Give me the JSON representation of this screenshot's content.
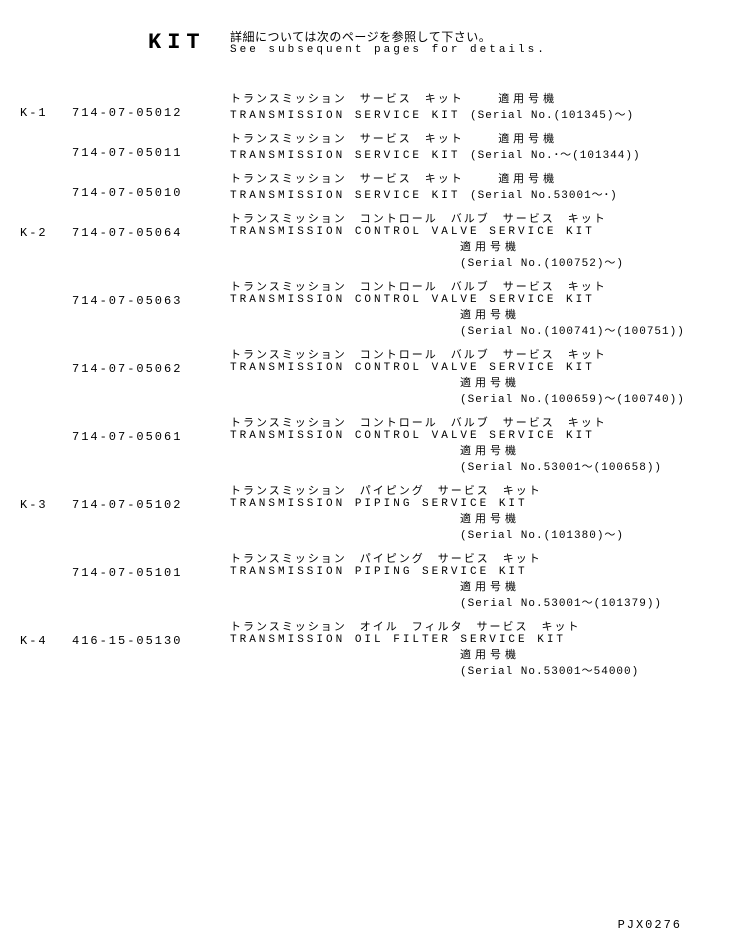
{
  "header": {
    "title": "KIT",
    "jp": "詳細については次のページを参照して下さい。",
    "en": "See subsequent pages for details."
  },
  "rows": [
    {
      "k": "K-1",
      "part": "714-07-05012",
      "jp": "トランスミッション　サービス　キット",
      "en": "TRANSMISSION SERVICE KIT",
      "inline_serial_jp": "適用号機",
      "inline_serial_en": "(Serial No.(101345)～)",
      "serial_jp": null,
      "serial_en": null
    },
    {
      "k": "",
      "part": "714-07-05011",
      "jp": "トランスミッション　サービス　キット",
      "en": "TRANSMISSION SERVICE KIT",
      "inline_serial_jp": "適用号機",
      "inline_serial_en": "(Serial No.･～(101344))",
      "serial_jp": null,
      "serial_en": null
    },
    {
      "k": "",
      "part": "714-07-05010",
      "jp": "トランスミッション　サービス　キット",
      "en": "TRANSMISSION SERVICE KIT",
      "inline_serial_jp": "適用号機",
      "inline_serial_en": "(Serial No.53001～･)",
      "serial_jp": null,
      "serial_en": null
    },
    {
      "k": "K-2",
      "part": "714-07-05064",
      "jp": "トランスミッション　コントロール　バルブ　サービス　キット",
      "en": "TRANSMISSION CONTROL VALVE SERVICE KIT",
      "inline_serial_jp": null,
      "inline_serial_en": null,
      "serial_jp": "適用号機",
      "serial_en": "(Serial No.(100752)～)"
    },
    {
      "k": "",
      "part": "714-07-05063",
      "jp": "トランスミッション　コントロール　バルブ　サービス　キット",
      "en": "TRANSMISSION CONTROL VALVE SERVICE KIT",
      "inline_serial_jp": null,
      "inline_serial_en": null,
      "serial_jp": "適用号機",
      "serial_en": "(Serial No.(100741)～(100751))"
    },
    {
      "k": "",
      "part": "714-07-05062",
      "jp": "トランスミッション　コントロール　バルブ　サービス　キット",
      "en": "TRANSMISSION CONTROL VALVE SERVICE KIT",
      "inline_serial_jp": null,
      "inline_serial_en": null,
      "serial_jp": "適用号機",
      "serial_en": "(Serial No.(100659)～(100740))"
    },
    {
      "k": "",
      "part": "714-07-05061",
      "jp": "トランスミッション　コントロール　バルブ　サービス　キット",
      "en": "TRANSMISSION CONTROL VALVE SERVICE KIT",
      "inline_serial_jp": null,
      "inline_serial_en": null,
      "serial_jp": "適用号機",
      "serial_en": "(Serial No.53001～(100658))"
    },
    {
      "k": "K-3",
      "part": "714-07-05102",
      "jp": "トランスミッション　パイピング　サービス　キット",
      "en": "TRANSMISSION PIPING SERVICE KIT",
      "inline_serial_jp": null,
      "inline_serial_en": null,
      "serial_jp": "適用号機",
      "serial_en": "(Serial No.(101380)～)"
    },
    {
      "k": "",
      "part": "714-07-05101",
      "jp": "トランスミッション　パイピング　サービス　キット",
      "en": "TRANSMISSION PIPING SERVICE KIT",
      "inline_serial_jp": null,
      "inline_serial_en": null,
      "serial_jp": "適用号機",
      "serial_en": "(Serial No.53001～(101379))"
    },
    {
      "k": "K-4",
      "part": "416-15-05130",
      "jp": "トランスミッション　オイル　フィルタ　サービス　キット",
      "en": "TRANSMISSION OIL FILTER SERVICE KIT",
      "inline_serial_jp": null,
      "inline_serial_en": null,
      "serial_jp": "適用号機",
      "serial_en": "(Serial No.53001～54000)"
    }
  ],
  "footer": "PJX0276"
}
